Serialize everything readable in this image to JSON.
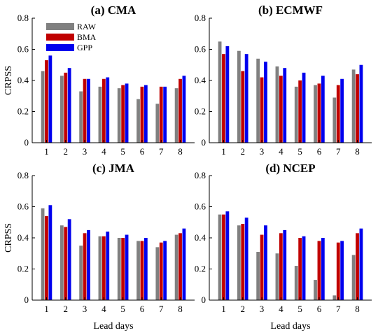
{
  "chart_data": [
    {
      "type": "bar",
      "title": "(a) CMA",
      "xlabel": "",
      "ylabel": "CRPSS",
      "categories": [
        "1",
        "2",
        "3",
        "4",
        "5",
        "6",
        "7",
        "8"
      ],
      "ylim": [
        0,
        0.8
      ],
      "yticks": [
        "0",
        "0.2",
        "0.4",
        "0.6",
        "0.8"
      ],
      "series": [
        {
          "name": "RAW",
          "values": [
            0.46,
            0.43,
            0.33,
            0.36,
            0.35,
            0.28,
            0.25,
            0.35
          ]
        },
        {
          "name": "BMA",
          "values": [
            0.53,
            0.45,
            0.41,
            0.41,
            0.37,
            0.36,
            0.36,
            0.41
          ]
        },
        {
          "name": "GPP",
          "values": [
            0.56,
            0.48,
            0.41,
            0.42,
            0.38,
            0.37,
            0.36,
            0.43
          ]
        }
      ]
    },
    {
      "type": "bar",
      "title": "(b) ECMWF",
      "xlabel": "",
      "ylabel": "",
      "categories": [
        "1",
        "2",
        "3",
        "4",
        "5",
        "6",
        "7",
        "8"
      ],
      "ylim": [
        0,
        0.8
      ],
      "yticks": [
        "0",
        "0.2",
        "0.4",
        "0.6",
        "0.8"
      ],
      "series": [
        {
          "name": "RAW",
          "values": [
            0.65,
            0.59,
            0.54,
            0.49,
            0.36,
            0.37,
            0.29,
            0.47
          ]
        },
        {
          "name": "BMA",
          "values": [
            0.57,
            0.46,
            0.42,
            0.43,
            0.4,
            0.38,
            0.37,
            0.44
          ]
        },
        {
          "name": "GPP",
          "values": [
            0.62,
            0.57,
            0.52,
            0.48,
            0.45,
            0.43,
            0.41,
            0.5
          ]
        }
      ]
    },
    {
      "type": "bar",
      "title": "(c) JMA",
      "xlabel": "Lead days",
      "ylabel": "CRPSS",
      "categories": [
        "1",
        "2",
        "3",
        "4",
        "5",
        "6",
        "7",
        "8"
      ],
      "ylim": [
        0,
        0.8
      ],
      "yticks": [
        "0",
        "0.2",
        "0.4",
        "0.6",
        "0.8"
      ],
      "series": [
        {
          "name": "RAW",
          "values": [
            0.59,
            0.48,
            0.35,
            0.41,
            0.4,
            0.38,
            0.34,
            0.42
          ]
        },
        {
          "name": "BMA",
          "values": [
            0.54,
            0.47,
            0.43,
            0.41,
            0.4,
            0.38,
            0.37,
            0.43
          ]
        },
        {
          "name": "GPP",
          "values": [
            0.61,
            0.52,
            0.45,
            0.44,
            0.42,
            0.4,
            0.38,
            0.46
          ]
        }
      ]
    },
    {
      "type": "bar",
      "title": "(d) NCEP",
      "xlabel": "Lead days",
      "ylabel": "",
      "categories": [
        "1",
        "2",
        "3",
        "4",
        "5",
        "6",
        "7",
        "8"
      ],
      "ylim": [
        0,
        0.8
      ],
      "yticks": [
        "0",
        "0.2",
        "0.4",
        "0.6",
        "0.8"
      ],
      "series": [
        {
          "name": "RAW",
          "values": [
            0.55,
            0.48,
            0.31,
            0.3,
            0.22,
            0.13,
            0.03,
            0.29
          ]
        },
        {
          "name": "BMA",
          "values": [
            0.55,
            0.49,
            0.42,
            0.43,
            0.4,
            0.38,
            0.37,
            0.43
          ]
        },
        {
          "name": "GPP",
          "values": [
            0.57,
            0.53,
            0.48,
            0.45,
            0.41,
            0.4,
            0.38,
            0.46
          ]
        }
      ]
    }
  ],
  "legend": {
    "entries": [
      "RAW",
      "BMA",
      "GPP"
    ],
    "position": "top-left of panel (a)"
  },
  "colors": {
    "RAW": "#808080",
    "BMA": "#c00000",
    "GPP": "#0000ee",
    "axis": "#000000"
  }
}
